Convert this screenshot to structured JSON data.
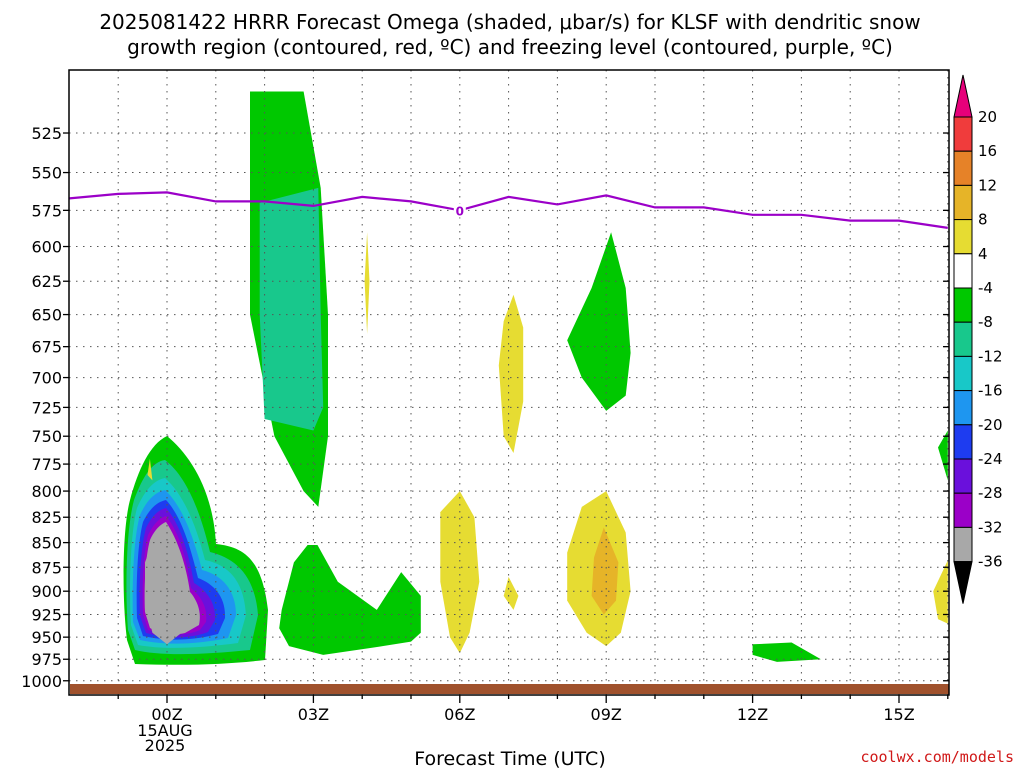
{
  "title": {
    "line1": "2025081422 HRRR Forecast Omega (shaded, μbar/s) for KLSF with dendritic snow",
    "line2": "growth region (contoured, red, ºC) and freezing level (contoured, purple, ºC)"
  },
  "watermark": "coolwx.com/models",
  "chart_data": {
    "type": "heatmap",
    "title": "2025081422 HRRR Forecast Omega (shaded, μbar/s) for KLSF with dendritic snow growth region (contoured, red, ºC) and freezing level (contoured, purple, ºC)",
    "xlabel": "Forecast Time (UTC)",
    "ylabel": "",
    "x_axis": {
      "ticks": [
        {
          "label": "00Z",
          "value": 0,
          "sublabels": [
            "15AUG",
            "2025"
          ]
        },
        {
          "label": "03Z",
          "value": 3
        },
        {
          "label": "06Z",
          "value": 6
        },
        {
          "label": "09Z",
          "value": 9
        },
        {
          "label": "12Z",
          "value": 12
        },
        {
          "label": "15Z",
          "value": 15
        }
      ],
      "range": [
        -2,
        16
      ]
    },
    "y_axis": {
      "ticks": [
        525,
        550,
        575,
        600,
        625,
        650,
        675,
        700,
        725,
        750,
        775,
        800,
        825,
        850,
        875,
        900,
        925,
        950,
        975,
        1000
      ],
      "range": [
        500,
        1005
      ],
      "inverted": true,
      "scale": "log"
    },
    "grid": true,
    "colorbar": {
      "levels": [
        "-36",
        "-32",
        "-28",
        "-24",
        "-20",
        "-16",
        "-12",
        "-8",
        "-4",
        "4",
        "8",
        "12",
        "16",
        "20"
      ],
      "colors": [
        "#000000",
        "#a8a8a8",
        "#9b00c8",
        "#6a10dc",
        "#1e3cf0",
        "#1e96f0",
        "#18c8c8",
        "#18c88c",
        "#00c800",
        "#ffffff",
        "#e6dc32",
        "#e6b428",
        "#e68228",
        "#f03c3c",
        "#e6007a"
      ],
      "extend": "both"
    },
    "freezing_level": {
      "label": "0",
      "color": "#9b00c8",
      "x": [
        -2,
        -1,
        0,
        1,
        2,
        3,
        4,
        5,
        6,
        7,
        8,
        9,
        10,
        11,
        12,
        13,
        14,
        15,
        16
      ],
      "y": [
        567,
        564,
        563,
        569,
        569,
        572,
        566,
        569,
        575,
        566,
        571,
        565,
        573,
        573,
        578,
        578,
        582,
        582,
        587
      ]
    },
    "terrain": {
      "color": "#a0522d"
    },
    "regions": [
      {
        "value": "-36",
        "points": [
          [
            -0.2,
            837
          ],
          [
            0.1,
            842
          ],
          [
            0.3,
            870
          ],
          [
            0.4,
            895
          ],
          [
            0.3,
            945
          ],
          [
            0,
            958
          ],
          [
            -0.3,
            945
          ],
          [
            -0.45,
            910
          ],
          [
            -0.45,
            870
          ]
        ]
      },
      {
        "value": "-6",
        "points": [
          [
            1.7,
            500
          ],
          [
            2.8,
            500
          ],
          [
            3.15,
            560
          ],
          [
            3.3,
            650
          ],
          [
            3.3,
            750
          ],
          [
            3.1,
            815
          ],
          [
            2.8,
            800
          ],
          [
            2.2,
            750
          ],
          [
            1.7,
            650
          ]
        ]
      },
      {
        "value": "-10",
        "points": [
          [
            1.9,
            570
          ],
          [
            3.1,
            560
          ],
          [
            3.15,
            650
          ],
          [
            3.2,
            725
          ],
          [
            3,
            745
          ],
          [
            2,
            735
          ],
          [
            1.9,
            650
          ]
        ]
      },
      {
        "value": "-6",
        "points": [
          [
            3,
            845
          ],
          [
            3.5,
            890
          ],
          [
            4.3,
            920
          ],
          [
            4.8,
            880
          ],
          [
            5.2,
            905
          ],
          [
            5.2,
            945
          ],
          [
            5,
            955
          ],
          [
            4.2,
            962
          ],
          [
            3.2,
            970
          ],
          [
            2.5,
            960
          ],
          [
            2.3,
            940
          ],
          [
            2.35,
            920
          ],
          [
            2.6,
            870
          ]
        ]
      },
      {
        "value": "6",
        "points": [
          [
            7.1,
            635
          ],
          [
            7.3,
            660
          ],
          [
            7.3,
            720
          ],
          [
            7.1,
            765
          ],
          [
            6.9,
            750
          ],
          [
            6.8,
            690
          ],
          [
            6.9,
            655
          ]
        ]
      },
      {
        "value": "6",
        "points": [
          [
            -0.35,
            770
          ],
          [
            -0.3,
            790
          ],
          [
            -0.4,
            785
          ]
        ]
      },
      {
        "value": "6",
        "points": [
          [
            4.1,
            590
          ],
          [
            4.15,
            625
          ],
          [
            4.1,
            665
          ],
          [
            4.05,
            625
          ]
        ]
      },
      {
        "value": "-6",
        "points": [
          [
            9.1,
            590
          ],
          [
            9.4,
            630
          ],
          [
            9.5,
            680
          ],
          [
            9.4,
            715
          ],
          [
            9,
            728
          ],
          [
            8.5,
            700
          ],
          [
            8.2,
            670
          ],
          [
            8.7,
            630
          ]
        ]
      },
      {
        "value": "6",
        "points": [
          [
            6,
            800
          ],
          [
            6.3,
            825
          ],
          [
            6.4,
            890
          ],
          [
            6.2,
            945
          ],
          [
            6,
            968
          ],
          [
            5.8,
            950
          ],
          [
            5.6,
            890
          ],
          [
            5.6,
            820
          ]
        ]
      },
      {
        "value": "6",
        "points": [
          [
            9,
            800
          ],
          [
            9.4,
            840
          ],
          [
            9.5,
            900
          ],
          [
            9.3,
            945
          ],
          [
            9,
            960
          ],
          [
            8.6,
            945
          ],
          [
            8.2,
            910
          ],
          [
            8.2,
            860
          ],
          [
            8.5,
            815
          ]
        ]
      },
      {
        "value": "10",
        "points": [
          [
            8.95,
            835
          ],
          [
            9.25,
            870
          ],
          [
            9.2,
            910
          ],
          [
            8.95,
            925
          ],
          [
            8.7,
            905
          ],
          [
            8.75,
            865
          ]
        ]
      },
      {
        "value": "-6",
        "points": [
          [
            12,
            958
          ],
          [
            12.8,
            956
          ],
          [
            13.4,
            975
          ],
          [
            12.5,
            978
          ],
          [
            12,
            970
          ]
        ]
      },
      {
        "value": "6",
        "points": [
          [
            7,
            885
          ],
          [
            7.2,
            905
          ],
          [
            7.1,
            920
          ],
          [
            6.9,
            905
          ]
        ]
      },
      {
        "value": "6",
        "points": [
          [
            16,
            868
          ],
          [
            15.7,
            900
          ],
          [
            15.8,
            930
          ],
          [
            16,
            935
          ]
        ]
      },
      {
        "value": "-6",
        "points": [
          [
            16,
            745
          ],
          [
            15.8,
            760
          ],
          [
            16,
            790
          ]
        ]
      }
    ]
  }
}
